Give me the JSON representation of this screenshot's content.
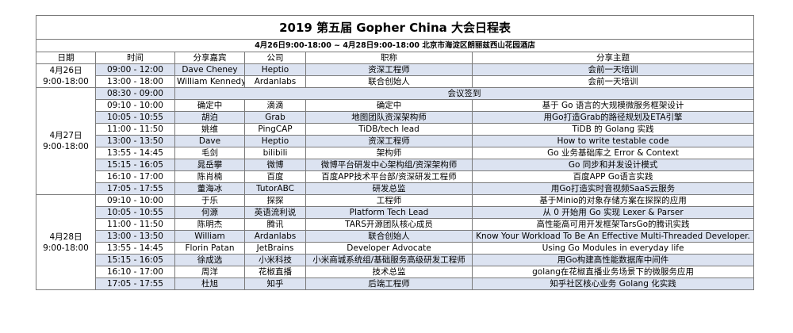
{
  "title": "2019 第五届 Gopher China 大会日程表",
  "subtitle": "4月26日9:00-18:00 ~ 4月28日9:00-18:00  北京市海淀区朗丽兹西山花园酒店",
  "headers": [
    "日期",
    "时间",
    "分享嘉宾",
    "公司",
    "职称",
    "分享主题"
  ],
  "days": [
    {
      "date_line1": "4月26日",
      "date_line2": "9:00-18:00",
      "rows": [
        {
          "time": "09:00 - 12:00",
          "speaker": "Dave Cheney",
          "company": "Heptio",
          "position": "资深工程师",
          "topic": "会前一天培训"
        },
        {
          "time": "13:00 - 18:00",
          "speaker": "William Kennedy",
          "company": "Ardanlabs",
          "position": "联合创始人",
          "topic": "会前一天培训"
        }
      ]
    },
    {
      "date_line1": "4月27日",
      "date_line2": "9:00-18:00",
      "rows": [
        {
          "time": "08:30 - 09:00",
          "span": true,
          "merged": "会议签到"
        },
        {
          "time": "09:10 - 10:00",
          "speaker": "确定中",
          "company": "滴滴",
          "position": "确定中",
          "topic": "基于 Go 语言的大规模微服务框架设计"
        },
        {
          "time": "10:05 - 10:55",
          "speaker": "胡泊",
          "company": "Grab",
          "position": "地图团队资深架构师",
          "topic": "用Go打造Grab的路径规划及ETA引擎"
        },
        {
          "time": "11:00 - 11:50",
          "speaker": "姚维",
          "company": "PingCAP",
          "position": "TiDB/tech lead",
          "topic": "TiDB 的 Golang 实践"
        },
        {
          "time": "13:00 - 13:50",
          "speaker": "Dave",
          "company": "Heptio",
          "position": "资深工程师",
          "topic": "How to write testable code"
        },
        {
          "time": "13:55 - 14:45",
          "speaker": "毛剑",
          "company": "bilibili",
          "position": "架构师",
          "topic": "Go 业务基础库之 Error & Context"
        },
        {
          "time": "15:15 - 16:05",
          "speaker": "晁岳攀",
          "company": "微博",
          "position": "微博平台研发中心架构组/资深架构师",
          "topic": "Go 同步和并发设计模式"
        },
        {
          "time": "16:10 - 17:00",
          "speaker": "陈肖楠",
          "company": "百度",
          "position": "百度APP技术平台部/资深研发工程师",
          "topic": "百度APP Go语言实践"
        },
        {
          "time": "17:05 - 17:55",
          "speaker": "董海冰",
          "company": "TutorABC",
          "position": "研发总监",
          "topic": "用Go打造实时音视频SaaS云服务"
        }
      ]
    },
    {
      "date_line1": "4月28日",
      "date_line2": "9:00-18:00",
      "rows": [
        {
          "time": "09:10 - 10:00",
          "speaker": "于乐",
          "company": "探探",
          "position": "工程师",
          "topic": "基于Minio的对象存储方案在探探的应用"
        },
        {
          "time": "10:05 - 10:55",
          "speaker": "何源",
          "company": "英语流利说",
          "position": "Platform Tech Lead",
          "topic": "从 0 开始用 Go 实现 Lexer & Parser"
        },
        {
          "time": "11:00 - 11:50",
          "speaker": "陈明杰",
          "company": "腾讯",
          "position": "TARS开源团队核心成员",
          "topic": "高性能高可用开发框架TarsGo的腾讯实践"
        },
        {
          "time": "13:00 - 13:50",
          "speaker": "William",
          "company": "Ardanlabs",
          "position": "联合创始人",
          "topic": "Know Your Workload To Be An Effective Multi-Threaded Developer."
        },
        {
          "time": "13:55 - 14:45",
          "speaker": "Florin Patan",
          "company": "JetBrains",
          "position": "Developer Advocate",
          "topic": "Using Go Modules in everyday life"
        },
        {
          "time": "15:15 - 16:05",
          "speaker": "徐成选",
          "company": "小米科技",
          "position": "小米商城系统组/基础服务高级研发工程师",
          "topic": "用Go构建高性能数据库中间件"
        },
        {
          "time": "16:10 - 17:00",
          "speaker": "周洋",
          "company": "花椒直播",
          "position": "技术总监",
          "topic": "golang在花椒直播业务场景下的微服务应用"
        },
        {
          "time": "17:05 - 17:55",
          "speaker": "杜旭",
          "company": "知乎",
          "position": "后端工程师",
          "topic": "知乎社区核心业务 Golang 化实践"
        }
      ]
    }
  ],
  "colors": {
    "row_shade": "#dce3f1",
    "border": "#7a7a7a"
  }
}
